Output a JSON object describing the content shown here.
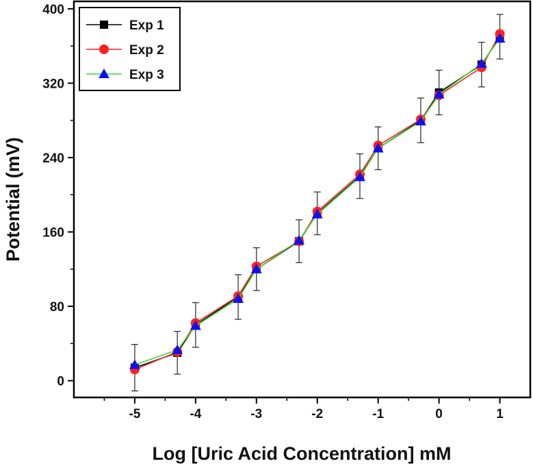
{
  "chart_data": {
    "type": "line",
    "xlabel": "Log [Uric Acid Concentration] mM",
    "ylabel": "Potential (mV)",
    "xlim": [
      -6,
      1.5
    ],
    "ylim": [
      -18,
      408
    ],
    "xticks": [
      -5,
      -4,
      -3,
      -2,
      -1,
      0,
      1
    ],
    "yticks": [
      0,
      80,
      160,
      240,
      320,
      400
    ],
    "x": [
      -5,
      -4.3,
      -4,
      -3.3,
      -3,
      -2.3,
      -2,
      -1.3,
      -1,
      -0.3,
      0,
      0.7,
      1
    ],
    "error_bars": [
      25,
      23,
      24,
      24,
      23,
      23,
      23,
      24,
      23,
      24,
      24,
      24,
      24
    ],
    "legend_position": "top-left",
    "grid": false,
    "series": [
      {
        "name": "Exp 1",
        "marker": "square",
        "color": "#000000",
        "values": [
          14,
          30,
          60,
          90,
          120,
          150,
          180,
          220,
          250,
          280,
          310,
          340,
          370
        ]
      },
      {
        "name": "Exp 2",
        "marker": "circle",
        "color": "#ff2020",
        "values": [
          12,
          31,
          62,
          91,
          123,
          150,
          182,
          222,
          253,
          281,
          307,
          337,
          373
        ]
      },
      {
        "name": "Exp 3",
        "marker": "triangle",
        "color": "#1010ee",
        "line_color": "#33dd33",
        "values": [
          17,
          33,
          59,
          88,
          120,
          151,
          179,
          219,
          250,
          279,
          308,
          341,
          368
        ]
      }
    ]
  }
}
